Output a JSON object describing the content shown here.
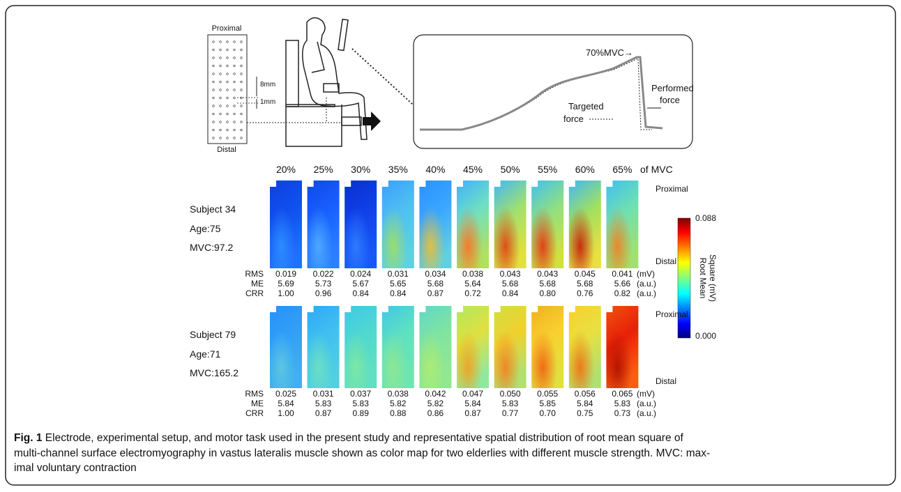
{
  "setup": {
    "electrode_top": "Proximal",
    "electrode_bottom": "Distal",
    "spacing_1": "8mm",
    "spacing_2": "1mm"
  },
  "force_panel": {
    "mvc_label": "70%MVC→",
    "performed": [
      "Performed",
      "force"
    ],
    "targeted": [
      "Targeted",
      "force"
    ]
  },
  "columns": [
    "20%",
    "25%",
    "30%",
    "35%",
    "40%",
    "45%",
    "50%",
    "55%",
    "60%",
    "65%"
  ],
  "columns_suffix": "of MVC",
  "subjects": [
    {
      "name": "Subject 34",
      "age": "Age:75",
      "mvc": "MVC:97.2",
      "top": "Proximal",
      "bottom": "Distal",
      "metrics": [
        {
          "label": "RMS",
          "unit": "(mV)",
          "values": [
            "0.019",
            "0.022",
            "0.024",
            "0.031",
            "0.034",
            "0.038",
            "0.043",
            "0.043",
            "0.045",
            "0.041"
          ]
        },
        {
          "label": "ME",
          "unit": "(a.u.)",
          "values": [
            "5.69",
            "5.73",
            "5.67",
            "5.65",
            "5.68",
            "5.64",
            "5.68",
            "5.68",
            "5.68",
            "5.66"
          ]
        },
        {
          "label": "CRR",
          "unit": "(a.u.)",
          "values": [
            "1.00",
            "0.96",
            "0.84",
            "0.84",
            "0.87",
            "0.72",
            "0.84",
            "0.80",
            "0.76",
            "0.82"
          ]
        }
      ]
    },
    {
      "name": "Subject 79",
      "age": "Age:71",
      "mvc": "MVC:165.2",
      "top": "Proximal",
      "bottom": "Distal",
      "metrics": [
        {
          "label": "RMS",
          "unit": "(mV)",
          "values": [
            "0.025",
            "0.031",
            "0.037",
            "0.038",
            "0.042",
            "0.047",
            "0.050",
            "0.055",
            "0.056",
            "0.065"
          ]
        },
        {
          "label": "ME",
          "unit": "(a.u.)",
          "values": [
            "5.84",
            "5.83",
            "5.83",
            "5.82",
            "5.82",
            "5.84",
            "5.83",
            "5.85",
            "5.84",
            "5.83"
          ]
        },
        {
          "label": "CRR",
          "unit": "(a.u.)",
          "values": [
            "1.00",
            "0.87",
            "0.89",
            "0.88",
            "0.86",
            "0.87",
            "0.77",
            "0.70",
            "0.75",
            "0.73"
          ]
        }
      ]
    }
  ],
  "colorbar": {
    "max": "0.088",
    "min": "0.000",
    "title": [
      "Root Mean",
      "Square (mV)"
    ]
  },
  "caption": {
    "label": "Fig. 1",
    "lines": [
      "Electrode, experimental setup, and motor task used in the present study and representative spatial distribution of root mean square of",
      "multi-channel surface electromyography in vastus lateralis muscle shown as color map for two elderlies with different muscle strength. MVC: max-",
      "imal voluntary contraction"
    ]
  }
}
